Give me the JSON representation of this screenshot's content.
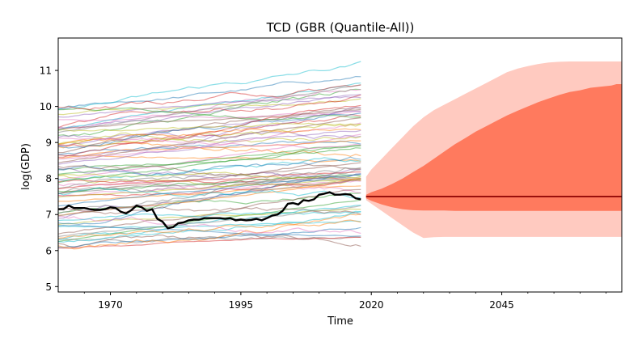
{
  "chart_data": {
    "type": "line",
    "title": "TCD (GBR (Quantile-All))",
    "xlabel": "Time",
    "ylabel": "log(GDP)",
    "xlim": [
      1960,
      2068
    ],
    "ylim": [
      4.85,
      11.9
    ],
    "x_ticks": [
      1970,
      1995,
      2020,
      2045
    ],
    "y_ticks": [
      5,
      6,
      7,
      8,
      9,
      10,
      11
    ],
    "grid": false,
    "historical_years": [
      1960,
      2018
    ],
    "focus_series": {
      "name": "TCD",
      "color": "#000000",
      "points": [
        [
          1960,
          7.15
        ],
        [
          1961,
          7.15
        ],
        [
          1962,
          7.25
        ],
        [
          1963,
          7.18
        ],
        [
          1964,
          7.18
        ],
        [
          1965,
          7.18
        ],
        [
          1966,
          7.15
        ],
        [
          1967,
          7.13
        ],
        [
          1968,
          7.13
        ],
        [
          1969,
          7.15
        ],
        [
          1970,
          7.2
        ],
        [
          1971,
          7.18
        ],
        [
          1972,
          7.08
        ],
        [
          1973,
          7.03
        ],
        [
          1974,
          7.12
        ],
        [
          1975,
          7.25
        ],
        [
          1976,
          7.2
        ],
        [
          1977,
          7.1
        ],
        [
          1978,
          7.15
        ],
        [
          1979,
          6.88
        ],
        [
          1980,
          6.8
        ],
        [
          1981,
          6.62
        ],
        [
          1982,
          6.65
        ],
        [
          1983,
          6.76
        ],
        [
          1984,
          6.78
        ],
        [
          1985,
          6.84
        ],
        [
          1986,
          6.86
        ],
        [
          1987,
          6.86
        ],
        [
          1988,
          6.9
        ],
        [
          1989,
          6.9
        ],
        [
          1990,
          6.9
        ],
        [
          1991,
          6.9
        ],
        [
          1992,
          6.88
        ],
        [
          1993,
          6.9
        ],
        [
          1994,
          6.84
        ],
        [
          1995,
          6.86
        ],
        [
          1996,
          6.84
        ],
        [
          1997,
          6.85
        ],
        [
          1998,
          6.88
        ],
        [
          1999,
          6.84
        ],
        [
          2000,
          6.9
        ],
        [
          2001,
          6.97
        ],
        [
          2002,
          7.0
        ],
        [
          2003,
          7.1
        ],
        [
          2004,
          7.3
        ],
        [
          2005,
          7.32
        ],
        [
          2006,
          7.28
        ],
        [
          2007,
          7.4
        ],
        [
          2008,
          7.38
        ],
        [
          2009,
          7.42
        ],
        [
          2010,
          7.55
        ],
        [
          2011,
          7.58
        ],
        [
          2012,
          7.62
        ],
        [
          2013,
          7.55
        ],
        [
          2014,
          7.55
        ],
        [
          2015,
          7.57
        ],
        [
          2016,
          7.55
        ],
        [
          2017,
          7.45
        ],
        [
          2018,
          7.42
        ]
      ]
    },
    "background_series_count": 80,
    "background_range": [
      5.3,
      11.5
    ],
    "forecast": {
      "start_year": 2019,
      "end_year": 2068,
      "median": 7.5,
      "median_color": "#8b0000",
      "inner_band_color": "#ff7a5e",
      "outer_band_color": "#ffcac0",
      "inner_band": {
        "years": [
          2019,
          2020,
          2022,
          2024,
          2026,
          2028,
          2030,
          2032,
          2034,
          2036,
          2038,
          2040,
          2042,
          2044,
          2046,
          2048,
          2050,
          2052,
          2054,
          2056,
          2058,
          2060,
          2062,
          2064,
          2066,
          2067,
          2068
        ],
        "lower": [
          7.45,
          7.38,
          7.28,
          7.2,
          7.15,
          7.12,
          7.11,
          7.11,
          7.11,
          7.1,
          7.1,
          7.1,
          7.1,
          7.1,
          7.1,
          7.1,
          7.1,
          7.1,
          7.1,
          7.1,
          7.1,
          7.1,
          7.1,
          7.1,
          7.1,
          7.1,
          7.1
        ],
        "upper": [
          7.55,
          7.62,
          7.72,
          7.85,
          8.0,
          8.18,
          8.35,
          8.55,
          8.75,
          8.95,
          9.12,
          9.3,
          9.45,
          9.6,
          9.75,
          9.88,
          10.0,
          10.12,
          10.22,
          10.32,
          10.4,
          10.45,
          10.52,
          10.55,
          10.58,
          10.62,
          10.62
        ]
      },
      "outer_band": {
        "years": [
          2019,
          2020,
          2022,
          2024,
          2026,
          2028,
          2030,
          2032,
          2034,
          2036,
          2038,
          2040,
          2042,
          2044,
          2046,
          2048,
          2050,
          2052,
          2054,
          2056,
          2058,
          2060,
          2062,
          2064,
          2066,
          2068
        ],
        "lower": [
          7.4,
          7.3,
          7.1,
          6.9,
          6.7,
          6.5,
          6.35,
          6.37,
          6.38,
          6.38,
          6.38,
          6.38,
          6.38,
          6.38,
          6.38,
          6.38,
          6.38,
          6.38,
          6.38,
          6.38,
          6.38,
          6.38,
          6.38,
          6.38,
          6.38,
          6.38
        ],
        "upper": [
          8.05,
          8.25,
          8.55,
          8.85,
          9.15,
          9.45,
          9.7,
          9.9,
          10.05,
          10.2,
          10.35,
          10.5,
          10.65,
          10.8,
          10.95,
          11.05,
          11.12,
          11.18,
          11.22,
          11.24,
          11.25,
          11.25,
          11.25,
          11.25,
          11.25,
          11.25
        ]
      }
    }
  }
}
